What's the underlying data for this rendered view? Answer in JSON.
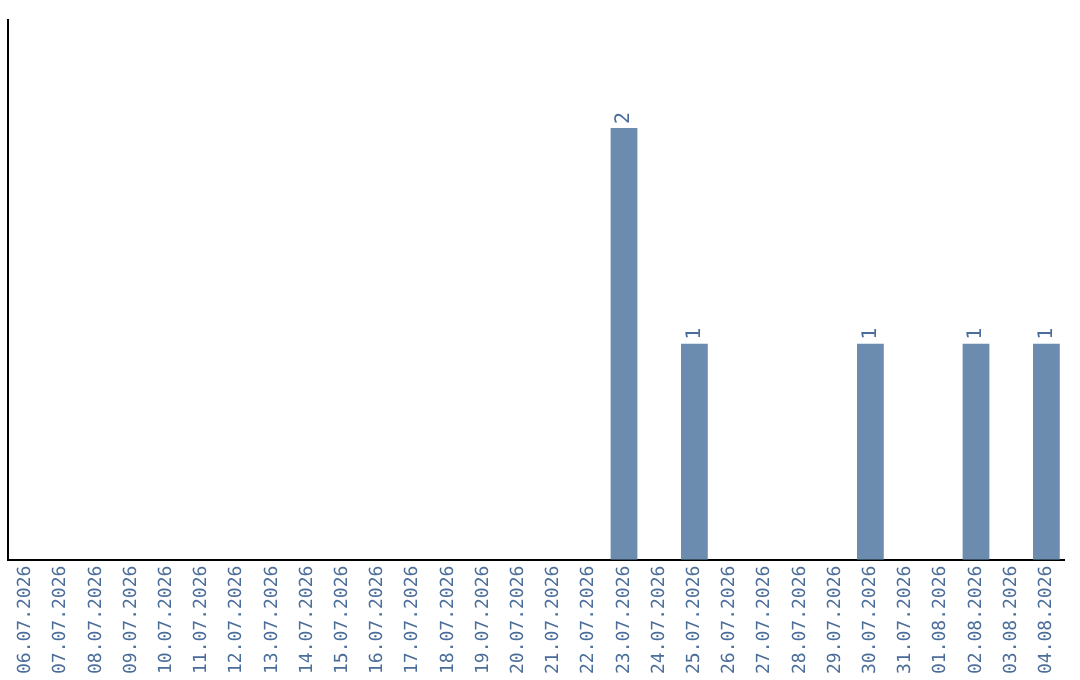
{
  "chart_data": {
    "type": "bar",
    "categories": [
      "06.07.2026",
      "07.07.2026",
      "08.07.2026",
      "09.07.2026",
      "10.07.2026",
      "11.07.2026",
      "12.07.2026",
      "13.07.2026",
      "14.07.2026",
      "15.07.2026",
      "16.07.2026",
      "17.07.2026",
      "18.07.2026",
      "19.07.2026",
      "20.07.2026",
      "21.07.2026",
      "22.07.2026",
      "23.07.2026",
      "24.07.2026",
      "25.07.2026",
      "26.07.2026",
      "27.07.2026",
      "28.07.2026",
      "29.07.2026",
      "30.07.2026",
      "31.07.2026",
      "01.08.2026",
      "02.08.2026",
      "03.08.2026",
      "04.08.2026"
    ],
    "values": [
      null,
      null,
      null,
      null,
      null,
      null,
      null,
      null,
      null,
      null,
      null,
      null,
      null,
      null,
      null,
      null,
      null,
      2,
      null,
      1,
      null,
      null,
      null,
      null,
      1,
      null,
      null,
      1,
      null,
      1
    ],
    "value_labels": [
      null,
      null,
      null,
      null,
      null,
      null,
      null,
      null,
      null,
      null,
      null,
      null,
      null,
      null,
      null,
      null,
      null,
      "2",
      null,
      "1",
      null,
      null,
      null,
      null,
      "1",
      null,
      null,
      "1",
      null,
      "1"
    ],
    "color": "#6b8cae",
    "tick_labels": "x",
    "grid": false,
    "legend": false
  }
}
